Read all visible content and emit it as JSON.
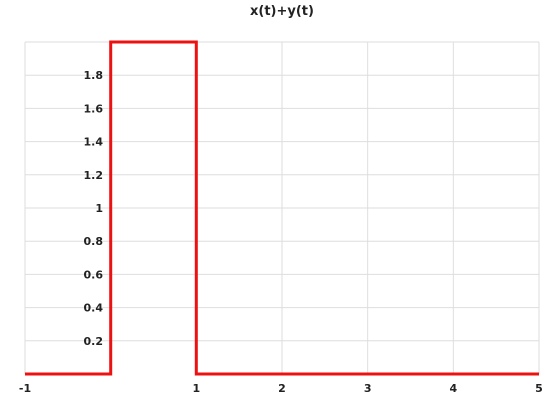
{
  "chart_data": {
    "type": "line",
    "title": "x(t)+y(t)",
    "xlabel": "",
    "ylabel": "",
    "xlim": [
      -1,
      5
    ],
    "ylim": [
      0,
      2
    ],
    "grid": true,
    "x_ticks": [
      -1,
      1,
      2,
      3,
      4,
      5
    ],
    "x_tick_labels": [
      "-1",
      "1",
      "2",
      "3",
      "4",
      "5"
    ],
    "y_ticks": [
      0.2,
      0.4,
      0.6,
      0.8,
      1,
      1.2,
      1.4,
      1.6,
      1.8
    ],
    "y_tick_labels": [
      "0.2",
      "0.4",
      "0.6",
      "0.8",
      "1",
      "1.2",
      "1.4",
      "1.6",
      "1.8"
    ],
    "series": [
      {
        "x": [
          -1,
          0,
          0,
          1,
          1,
          5
        ],
        "y": [
          0,
          0,
          2,
          2,
          0,
          0
        ],
        "color": "#ee1111"
      }
    ]
  }
}
